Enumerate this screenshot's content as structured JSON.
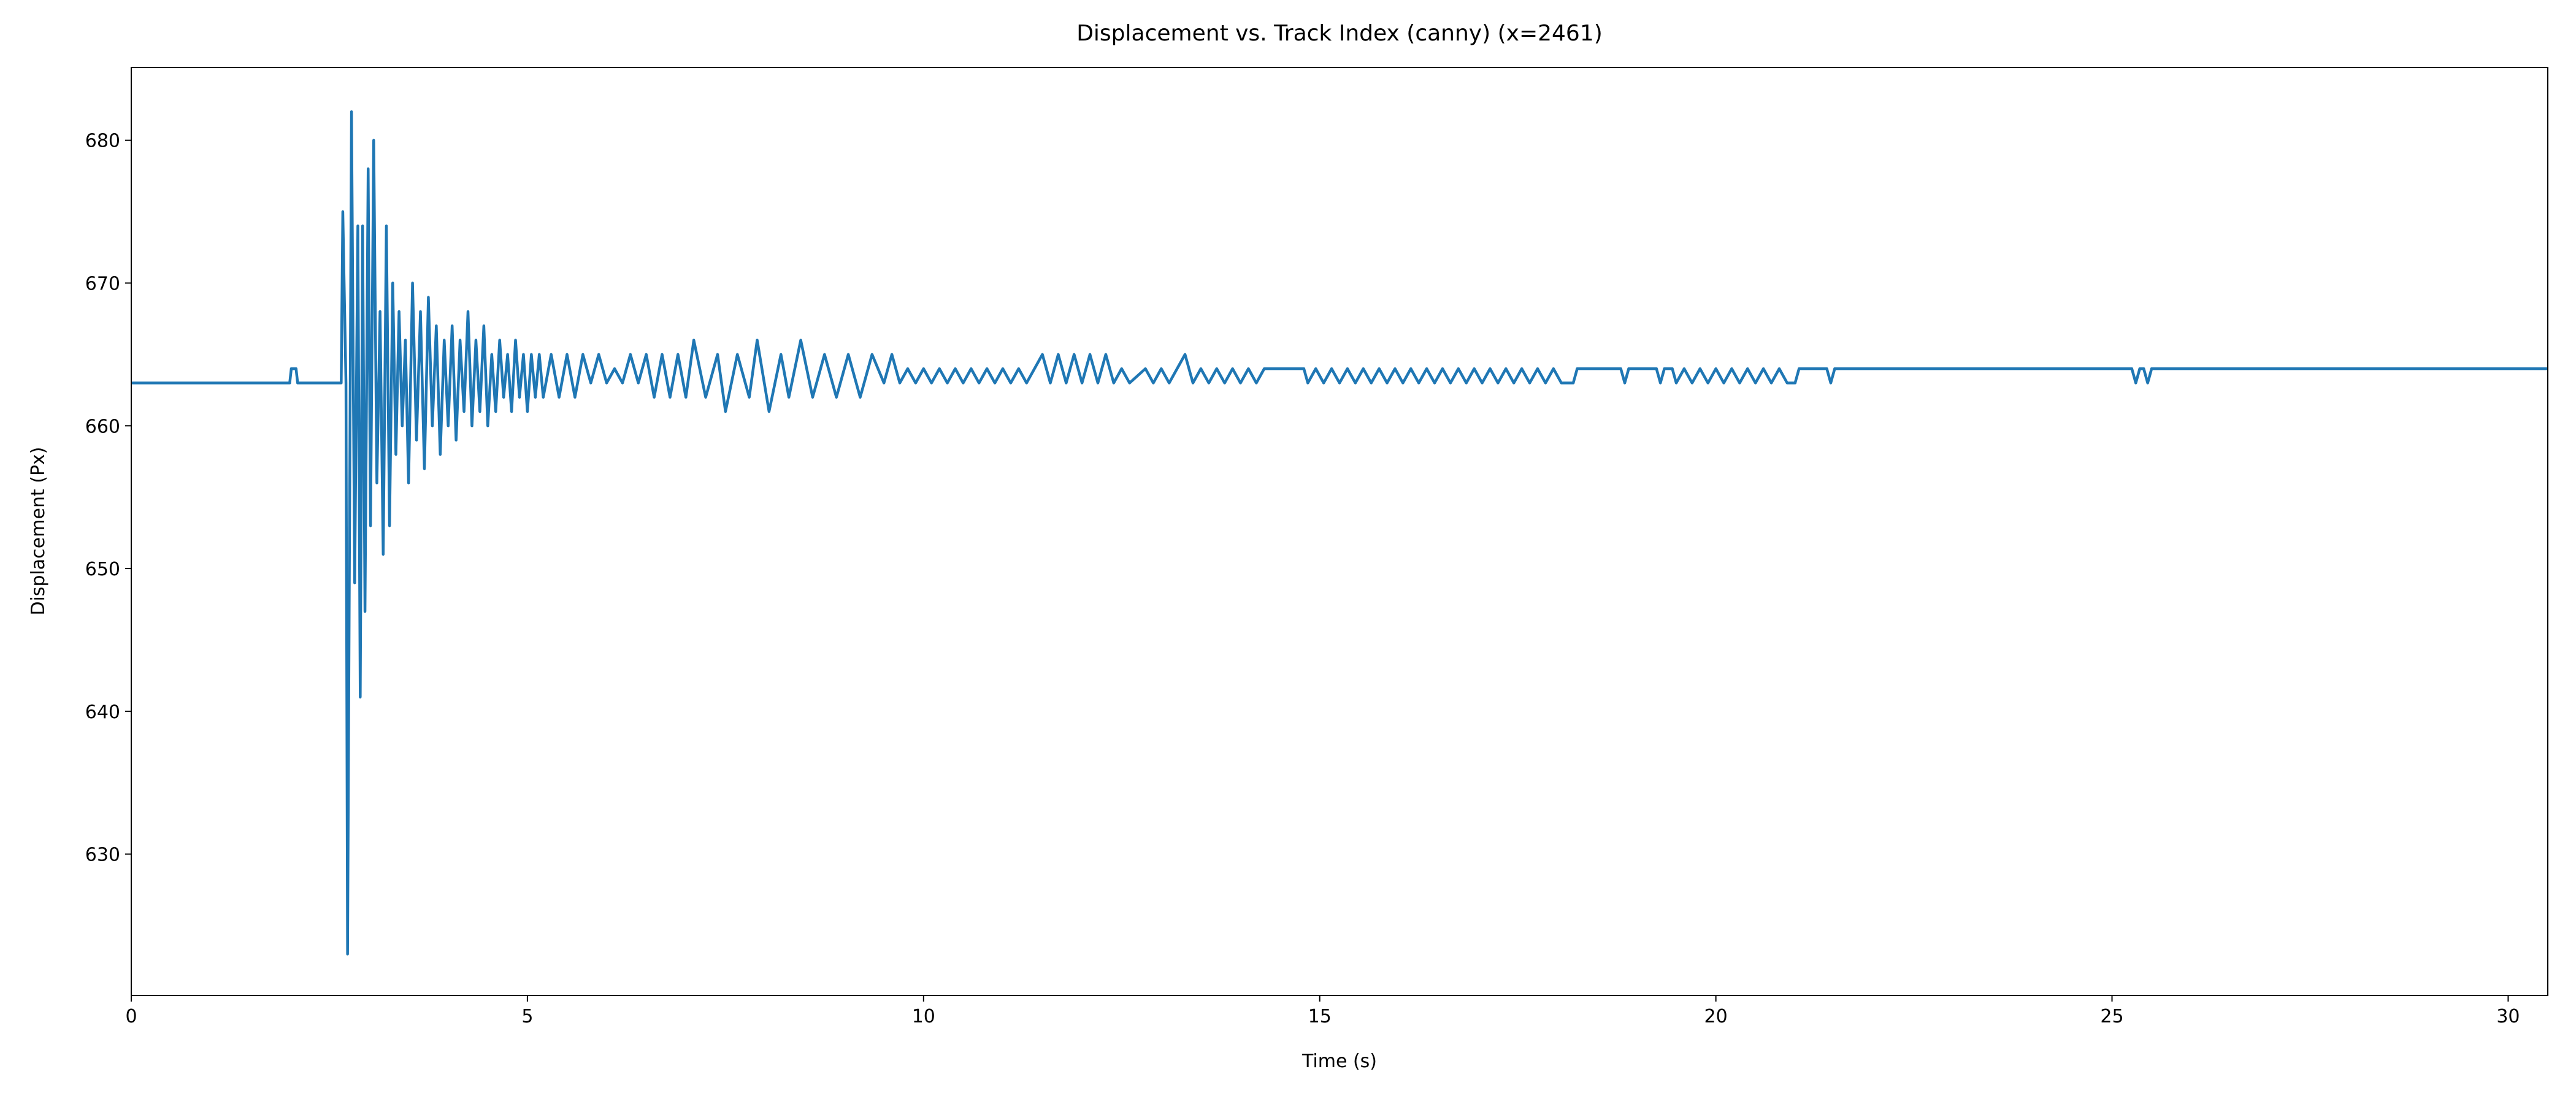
{
  "chart_data": {
    "type": "line",
    "title": "Displacement vs. Track Index (canny) (x=2461)",
    "x_label": "Time (s)",
    "y_label": "Displacement (Px)",
    "color": "#1f77b4",
    "grid": false,
    "xlim": [
      0,
      30.5
    ],
    "ylim": [
      620.1,
      685.1
    ],
    "xticks": [
      0,
      5,
      10,
      15,
      20,
      25,
      30
    ],
    "yticks": [
      630,
      640,
      650,
      660,
      670,
      680
    ],
    "x": [
      0,
      2.0,
      2.02,
      2.08,
      2.1,
      2.65,
      2.67,
      2.71,
      2.73,
      2.78,
      2.82,
      2.86,
      2.89,
      2.92,
      2.95,
      2.99,
      3.02,
      3.06,
      3.1,
      3.14,
      3.18,
      3.22,
      3.26,
      3.3,
      3.34,
      3.38,
      3.42,
      3.46,
      3.5,
      3.55,
      3.6,
      3.65,
      3.7,
      3.75,
      3.8,
      3.85,
      3.9,
      3.95,
      4.0,
      4.05,
      4.1,
      4.15,
      4.2,
      4.25,
      4.3,
      4.35,
      4.4,
      4.45,
      4.5,
      4.55,
      4.6,
      4.65,
      4.7,
      4.75,
      4.8,
      4.85,
      4.9,
      4.95,
      5.0,
      5.05,
      5.1,
      5.15,
      5.2,
      5.3,
      5.4,
      5.5,
      5.6,
      5.7,
      5.8,
      5.9,
      6.0,
      6.1,
      6.2,
      6.3,
      6.4,
      6.5,
      6.6,
      6.7,
      6.8,
      6.9,
      7.0,
      7.1,
      7.25,
      7.4,
      7.5,
      7.65,
      7.8,
      7.9,
      8.05,
      8.2,
      8.3,
      8.45,
      8.6,
      8.75,
      8.9,
      9.05,
      9.2,
      9.35,
      9.5,
      9.6,
      9.7,
      9.8,
      9.9,
      10.0,
      10.1,
      10.2,
      10.3,
      10.4,
      10.5,
      10.6,
      10.7,
      10.8,
      10.9,
      11.0,
      11.1,
      11.2,
      11.3,
      11.5,
      11.6,
      11.7,
      11.8,
      11.9,
      12.0,
      12.1,
      12.2,
      12.3,
      12.4,
      12.5,
      12.6,
      12.8,
      12.9,
      13.0,
      13.1,
      13.3,
      13.4,
      13.5,
      13.6,
      13.7,
      13.8,
      13.9,
      14.0,
      14.1,
      14.2,
      14.3,
      14.8,
      14.85,
      14.95,
      15.05,
      15.15,
      15.25,
      15.35,
      15.45,
      15.55,
      15.65,
      15.75,
      15.85,
      15.95,
      16.05,
      16.15,
      16.25,
      16.35,
      16.45,
      16.55,
      16.65,
      16.75,
      16.85,
      16.95,
      17.05,
      17.15,
      17.25,
      17.35,
      17.45,
      17.55,
      17.65,
      17.75,
      17.85,
      17.95,
      18.05,
      18.2,
      18.25,
      18.8,
      18.85,
      18.9,
      19.25,
      19.3,
      19.35,
      19.45,
      19.5,
      19.6,
      19.7,
      19.8,
      19.9,
      20.0,
      20.1,
      20.2,
      20.3,
      20.4,
      20.5,
      20.6,
      20.7,
      20.8,
      20.9,
      21.0,
      21.05,
      21.4,
      21.45,
      21.5,
      25.25,
      25.3,
      25.35,
      25.4,
      25.45,
      25.5,
      30.5
    ],
    "values": [
      663,
      663,
      664,
      664,
      663,
      663,
      675,
      663,
      623,
      682,
      649,
      674,
      641,
      674,
      647,
      678,
      653,
      680,
      656,
      668,
      651,
      674,
      653,
      670,
      658,
      668,
      660,
      666,
      656,
      670,
      659,
      668,
      657,
      669,
      660,
      667,
      658,
      666,
      660,
      667,
      659,
      666,
      661,
      668,
      660,
      666,
      661,
      667,
      660,
      665,
      661,
      666,
      662,
      665,
      661,
      666,
      662,
      665,
      661,
      665,
      662,
      665,
      662,
      665,
      662,
      665,
      662,
      665,
      663,
      665,
      663,
      664,
      663,
      665,
      663,
      665,
      662,
      665,
      662,
      665,
      662,
      666,
      662,
      665,
      661,
      665,
      662,
      666,
      661,
      665,
      662,
      666,
      662,
      665,
      662,
      665,
      662,
      665,
      663,
      665,
      663,
      664,
      663,
      664,
      663,
      664,
      663,
      664,
      663,
      664,
      663,
      664,
      663,
      664,
      663,
      664,
      663,
      665,
      663,
      665,
      663,
      665,
      663,
      665,
      663,
      665,
      663,
      664,
      663,
      664,
      663,
      664,
      663,
      665,
      663,
      664,
      663,
      664,
      663,
      664,
      663,
      664,
      663,
      664,
      664,
      663,
      664,
      663,
      664,
      663,
      664,
      663,
      664,
      663,
      664,
      663,
      664,
      663,
      664,
      663,
      664,
      663,
      664,
      663,
      664,
      663,
      664,
      663,
      664,
      663,
      664,
      663,
      664,
      663,
      664,
      663,
      664,
      663,
      663,
      664,
      664,
      663,
      664,
      664,
      663,
      664,
      664,
      663,
      664,
      663,
      664,
      663,
      664,
      663,
      664,
      663,
      664,
      663,
      664,
      663,
      664,
      663,
      663,
      664,
      664,
      663,
      664,
      664,
      663,
      664,
      664,
      663,
      664,
      664
    ]
  }
}
